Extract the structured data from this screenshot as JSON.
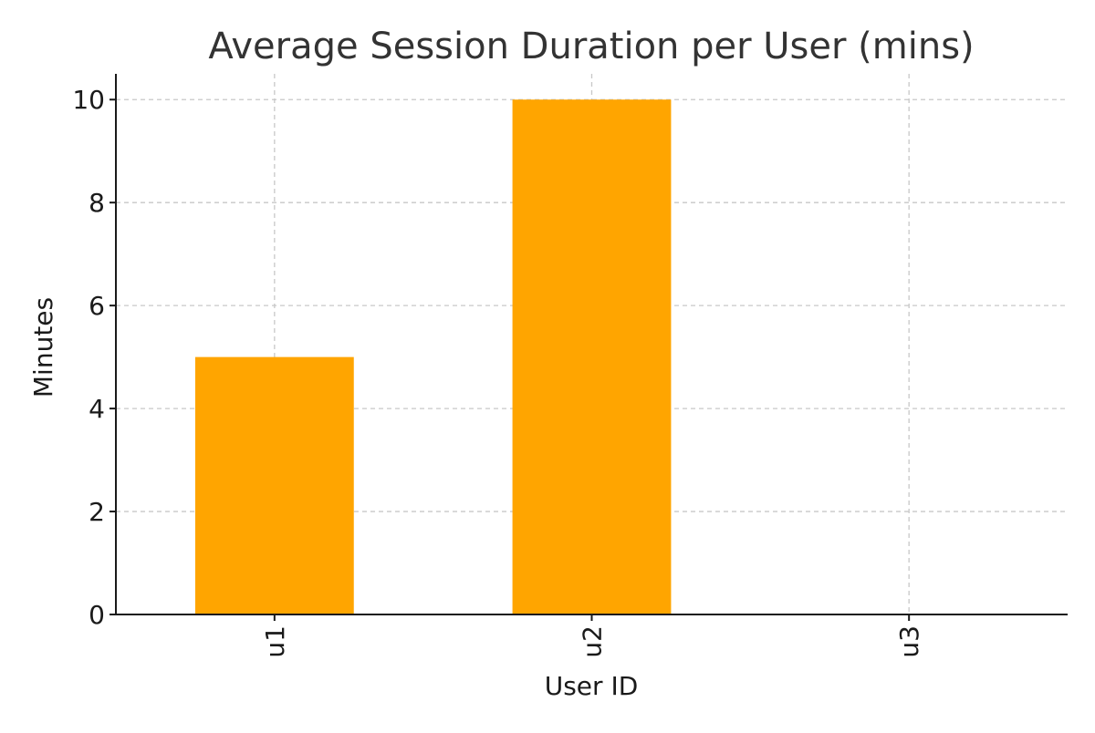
{
  "chart_data": {
    "type": "bar",
    "title": "Average Session Duration per User (mins)",
    "xlabel": "User ID",
    "ylabel": "Minutes",
    "categories": [
      "u1",
      "u2",
      "u3"
    ],
    "values": [
      5,
      10,
      0
    ],
    "ylim": [
      0,
      10.5
    ],
    "yticks": [
      0,
      2,
      4,
      6,
      8,
      10
    ],
    "grid": true,
    "bar_color": "#FFA500",
    "x_tick_rotation": "vertical"
  }
}
